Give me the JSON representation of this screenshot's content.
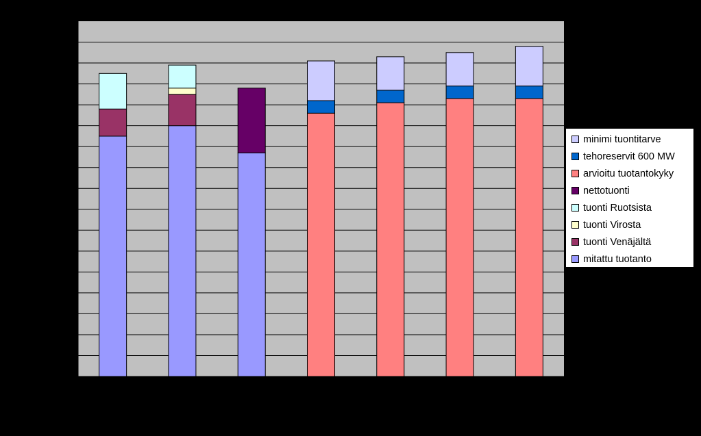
{
  "chart_data": {
    "type": "bar",
    "stacked": true,
    "title": "",
    "xlabel": "",
    "ylabel": "",
    "categories": [
      "",
      "",
      "",
      "",
      "",
      "",
      ""
    ],
    "ylim": [
      0,
      17
    ],
    "grid": true,
    "legend_position": "right",
    "series": [
      {
        "name": "mitattu tuotanto",
        "color": "#9999FF",
        "values": [
          11.5,
          12.0,
          10.7,
          0,
          0,
          0,
          0
        ]
      },
      {
        "name": "tuonti Venäjältä",
        "color": "#993366",
        "values": [
          1.3,
          1.5,
          0,
          0,
          0,
          0,
          0
        ]
      },
      {
        "name": "tuonti Virosta",
        "color": "#FFFFCC",
        "values": [
          0,
          0.3,
          0,
          0,
          0,
          0,
          0
        ]
      },
      {
        "name": "tuonti Ruotsista",
        "color": "#CCFFFF",
        "values": [
          1.7,
          1.1,
          0,
          0,
          0,
          0,
          0
        ]
      },
      {
        "name": "nettotuonti",
        "color": "#660066",
        "values": [
          0,
          0,
          3.1,
          0,
          0,
          0,
          0
        ]
      },
      {
        "name": "arvioitu tuotantokyky",
        "color": "#FF8080",
        "values": [
          0,
          0,
          0,
          12.6,
          13.1,
          13.3,
          13.3
        ]
      },
      {
        "name": "tehoreservit 600 MW",
        "color": "#0066CC",
        "values": [
          0,
          0,
          0,
          0.6,
          0.6,
          0.6,
          0.6
        ]
      },
      {
        "name": "minimi tuontitarve",
        "color": "#CCCCFF",
        "values": [
          0,
          0,
          0,
          1.9,
          1.6,
          1.6,
          1.9
        ]
      }
    ]
  },
  "colors": {
    "plot_background": "#C0C0C0",
    "page_background": "#000000",
    "gridline": "#000000"
  }
}
